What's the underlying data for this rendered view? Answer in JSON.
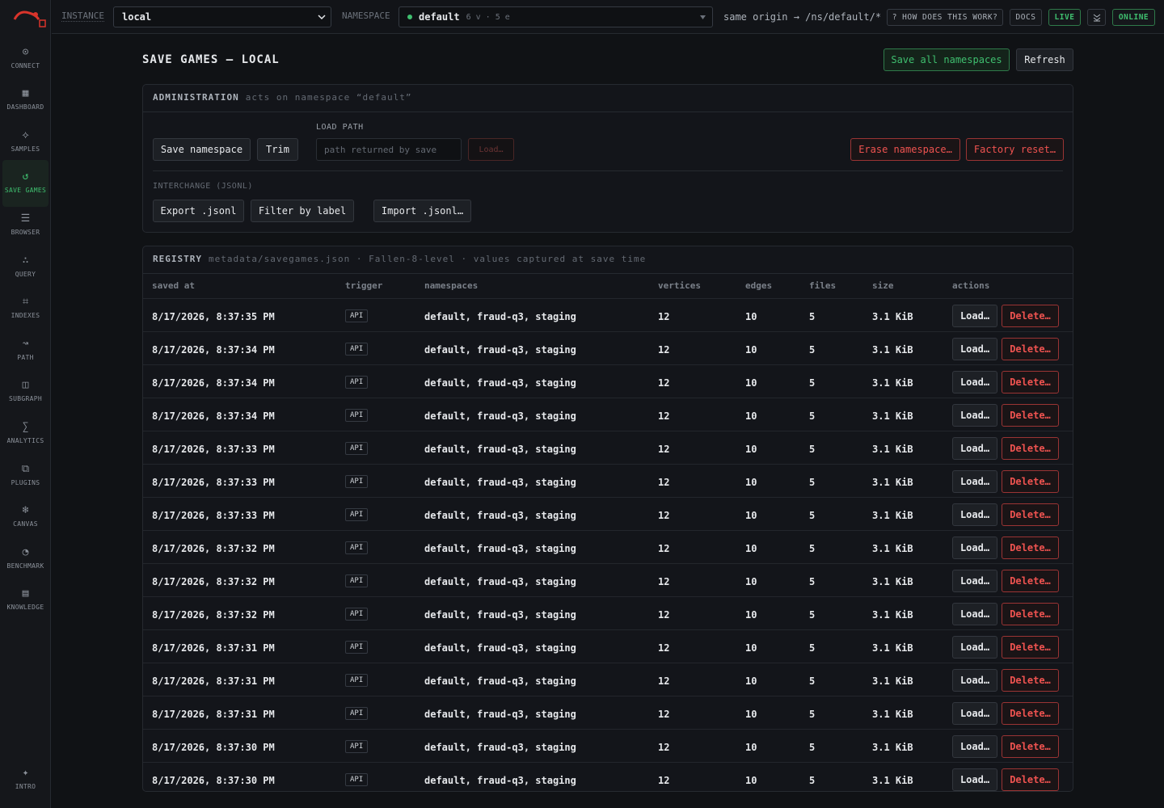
{
  "sidebar": {
    "items": [
      {
        "icon": "⊙",
        "label": "CONNECT"
      },
      {
        "icon": "▦",
        "label": "DASHBOARD"
      },
      {
        "icon": "⟡",
        "label": "SAMPLES"
      },
      {
        "icon": "↺",
        "label": "SAVE GAMES",
        "active": true
      },
      {
        "icon": "☰",
        "label": "BROWSER"
      },
      {
        "icon": "∴",
        "label": "QUERY"
      },
      {
        "icon": "⌗",
        "label": "INDEXES"
      },
      {
        "icon": "↝",
        "label": "PATH"
      },
      {
        "icon": "◫",
        "label": "SUBGRAPH"
      },
      {
        "icon": "∑",
        "label": "ANALYTICS"
      },
      {
        "icon": "⧉",
        "label": "PLUGINS"
      },
      {
        "icon": "❄",
        "label": "CANVAS"
      },
      {
        "icon": "◔",
        "label": "BENCHMARK"
      },
      {
        "icon": "▤",
        "label": "KNOWLEDGE"
      }
    ],
    "footer": {
      "icon": "✦",
      "label": "INTRO"
    }
  },
  "topbar": {
    "instance_label": "INSTANCE",
    "instance": "local",
    "namespace_label": "NAMESPACE",
    "namespace": "default",
    "namespace_counts": "6 v · 5 e",
    "route": "same origin → /ns/default/*",
    "help": "? HOW DOES THIS WORK?",
    "docs": "DOCS",
    "live": "LIVE",
    "online": "ONLINE"
  },
  "header": {
    "title": "SAVE GAMES — LOCAL",
    "save_all": "Save all namespaces",
    "refresh": "Refresh"
  },
  "admin": {
    "title": "ADMINISTRATION",
    "subtitle": "acts on namespace “default”",
    "save_namespace": "Save namespace",
    "trim": "Trim",
    "load_path_label": "LOAD PATH",
    "load_path_placeholder": "path returned by save",
    "load": "Load…",
    "erase": "Erase namespace…",
    "factory_reset": "Factory reset…",
    "interchange_label": "INTERCHANGE (JSONL)",
    "export": "Export .jsonl",
    "filter": "Filter by label",
    "import": "Import .jsonl…"
  },
  "registry": {
    "title": "REGISTRY",
    "subtitle": "metadata/savegames.json · Fallen-8-level · values captured at save time",
    "columns": [
      "saved at",
      "trigger",
      "namespaces",
      "vertices",
      "edges",
      "files",
      "size",
      "actions"
    ],
    "row_actions": [
      "Load…",
      "Delete…"
    ],
    "rows": [
      [
        "8/17/2026, 8:37:35 PM",
        "API",
        "default, fraud-q3, staging",
        "12",
        "10",
        "5",
        "3.1 KiB"
      ],
      [
        "8/17/2026, 8:37:34 PM",
        "API",
        "default, fraud-q3, staging",
        "12",
        "10",
        "5",
        "3.1 KiB"
      ],
      [
        "8/17/2026, 8:37:34 PM",
        "API",
        "default, fraud-q3, staging",
        "12",
        "10",
        "5",
        "3.1 KiB"
      ],
      [
        "8/17/2026, 8:37:34 PM",
        "API",
        "default, fraud-q3, staging",
        "12",
        "10",
        "5",
        "3.1 KiB"
      ],
      [
        "8/17/2026, 8:37:33 PM",
        "API",
        "default, fraud-q3, staging",
        "12",
        "10",
        "5",
        "3.1 KiB"
      ],
      [
        "8/17/2026, 8:37:33 PM",
        "API",
        "default, fraud-q3, staging",
        "12",
        "10",
        "5",
        "3.1 KiB"
      ],
      [
        "8/17/2026, 8:37:33 PM",
        "API",
        "default, fraud-q3, staging",
        "12",
        "10",
        "5",
        "3.1 KiB"
      ],
      [
        "8/17/2026, 8:37:32 PM",
        "API",
        "default, fraud-q3, staging",
        "12",
        "10",
        "5",
        "3.1 KiB"
      ],
      [
        "8/17/2026, 8:37:32 PM",
        "API",
        "default, fraud-q3, staging",
        "12",
        "10",
        "5",
        "3.1 KiB"
      ],
      [
        "8/17/2026, 8:37:32 PM",
        "API",
        "default, fraud-q3, staging",
        "12",
        "10",
        "5",
        "3.1 KiB"
      ],
      [
        "8/17/2026, 8:37:31 PM",
        "API",
        "default, fraud-q3, staging",
        "12",
        "10",
        "5",
        "3.1 KiB"
      ],
      [
        "8/17/2026, 8:37:31 PM",
        "API",
        "default, fraud-q3, staging",
        "12",
        "10",
        "5",
        "3.1 KiB"
      ],
      [
        "8/17/2026, 8:37:31 PM",
        "API",
        "default, fraud-q3, staging",
        "12",
        "10",
        "5",
        "3.1 KiB"
      ],
      [
        "8/17/2026, 8:37:30 PM",
        "API",
        "default, fraud-q3, staging",
        "12",
        "10",
        "5",
        "3.1 KiB"
      ],
      [
        "8/17/2026, 8:37:30 PM",
        "API",
        "default, fraud-q3, staging",
        "12",
        "10",
        "5",
        "3.1 KiB"
      ]
    ]
  }
}
